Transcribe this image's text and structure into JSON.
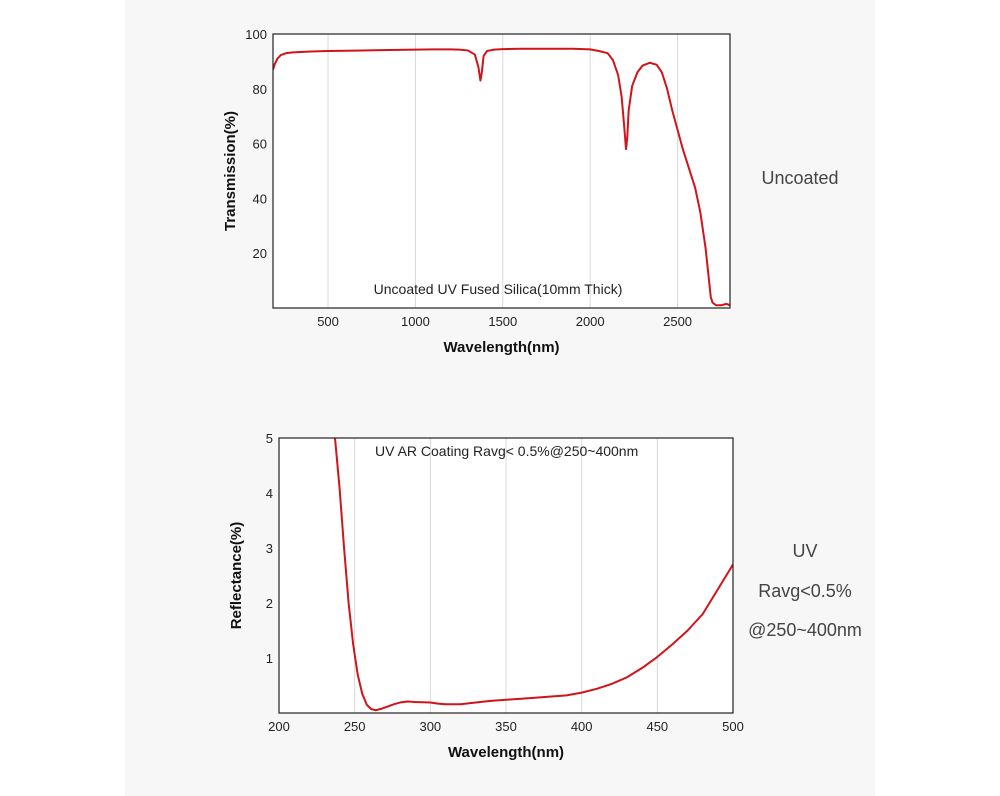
{
  "side_labels": {
    "top": "Uncoated",
    "bottom_line1": "UV",
    "bottom_line2": "Ravg<0.5%",
    "bottom_line3": "@250~400nm"
  },
  "colors": {
    "curve": "#d0141a",
    "grid": "#d8d8d8",
    "frame": "#222222",
    "panel_bg": "#f7f7f8"
  },
  "chart_data": [
    {
      "type": "line",
      "title": "",
      "annotation": "Uncoated UV Fused Silica(10mm Thick)",
      "xlabel": "Wavelength(nm)",
      "ylabel": "Transmission(%)",
      "xlim": [
        185,
        2800
      ],
      "ylim": [
        0,
        100
      ],
      "xticks": [
        500,
        1000,
        1500,
        2000,
        2500
      ],
      "yticks": [
        20,
        40,
        60,
        80,
        100
      ],
      "grid": "vertical",
      "series": [
        {
          "x": [
            185,
            195,
            210,
            230,
            260,
            300,
            400,
            500,
            600,
            700,
            800,
            900,
            1000,
            1100,
            1200,
            1250,
            1300,
            1340,
            1360,
            1372,
            1380,
            1390,
            1410,
            1450,
            1500,
            1600,
            1700,
            1800,
            1900,
            2000,
            2050,
            2100,
            2130,
            2160,
            2180,
            2195,
            2205,
            2212,
            2220,
            2240,
            2270,
            2300,
            2340,
            2380,
            2410,
            2440,
            2470,
            2500,
            2530,
            2560,
            2600,
            2630,
            2660,
            2680,
            2690,
            2700,
            2720,
            2750,
            2780,
            2800
          ],
          "y": [
            87,
            89,
            91,
            92.3,
            93,
            93.3,
            93.6,
            93.8,
            93.9,
            94.0,
            94.1,
            94.2,
            94.3,
            94.4,
            94.4,
            94.3,
            94.0,
            92.5,
            88,
            83,
            86,
            92,
            93.8,
            94.3,
            94.5,
            94.6,
            94.6,
            94.6,
            94.6,
            94.4,
            93.8,
            93,
            90.5,
            85,
            77,
            66,
            58,
            62,
            72,
            81,
            86,
            88.5,
            89.5,
            88.8,
            86,
            80,
            72,
            65,
            58,
            52,
            44,
            35,
            22,
            10,
            4,
            2,
            1,
            1,
            1.5,
            1
          ]
        }
      ]
    },
    {
      "type": "line",
      "title": "",
      "annotation": "UV AR Coating Ravg< 0.5%@250~400nm",
      "xlabel": "Wavelength(nm)",
      "ylabel": "Reflectance(%)",
      "xlim": [
        200,
        500
      ],
      "ylim": [
        0,
        5
      ],
      "xticks": [
        200,
        250,
        300,
        350,
        400,
        450,
        500
      ],
      "yticks": [
        1,
        2,
        3,
        4,
        5
      ],
      "grid": "vertical",
      "series": [
        {
          "x": [
            237,
            240,
            243,
            246,
            249,
            252,
            255,
            258,
            261,
            264,
            268,
            272,
            276,
            280,
            285,
            290,
            300,
            305,
            310,
            320,
            330,
            340,
            350,
            360,
            370,
            380,
            390,
            400,
            410,
            420,
            430,
            440,
            450,
            460,
            470,
            480,
            490,
            500
          ],
          "y": [
            5.0,
            4.1,
            3.0,
            2.0,
            1.25,
            0.7,
            0.35,
            0.15,
            0.07,
            0.05,
            0.08,
            0.12,
            0.16,
            0.19,
            0.21,
            0.2,
            0.19,
            0.17,
            0.16,
            0.16,
            0.19,
            0.22,
            0.24,
            0.26,
            0.28,
            0.3,
            0.32,
            0.37,
            0.44,
            0.53,
            0.65,
            0.82,
            1.02,
            1.25,
            1.5,
            1.8,
            2.25,
            2.7
          ]
        }
      ]
    }
  ]
}
